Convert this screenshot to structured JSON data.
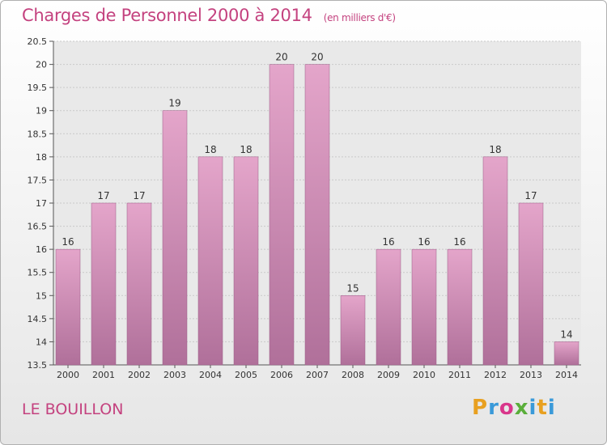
{
  "header": {
    "title": "Charges de Personnel 2000 à 2014",
    "unit": "(en milliers d'€)"
  },
  "footer": {
    "commune": "LE BOUILLON",
    "logo_letters": [
      "P",
      "r",
      "o",
      "x",
      "i",
      "t",
      "i"
    ],
    "logo_colors": [
      "#e8a020",
      "#3a9ad9",
      "#d9368b",
      "#5aae3a",
      "#3a9ad9",
      "#e8a020",
      "#3a9ad9"
    ]
  },
  "chart_data": {
    "type": "bar",
    "title": "Charges de Personnel 2000 à 2014",
    "categories": [
      "2000",
      "2001",
      "2002",
      "2003",
      "2004",
      "2005",
      "2006",
      "2007",
      "2008",
      "2009",
      "2010",
      "2011",
      "2012",
      "2013",
      "2014"
    ],
    "values": [
      16,
      17,
      17,
      19,
      18,
      18,
      20,
      20,
      15,
      16,
      16,
      16,
      18,
      17,
      14
    ],
    "data_labels": [
      "16",
      "17",
      "17",
      "19",
      "18",
      "18",
      "20",
      "20",
      "15",
      "16",
      "16",
      "16",
      "18",
      "17",
      "14"
    ],
    "y_ticks": [
      13.5,
      14,
      14.5,
      15,
      15.5,
      16,
      16.5,
      17,
      17.5,
      18,
      18.5,
      19,
      19.5,
      20,
      20.5
    ],
    "y_tick_labels": [
      "13.5",
      "14",
      "14.5",
      "15",
      "15.5",
      "16",
      "16.5",
      "17",
      "17.5",
      "18",
      "18.5",
      "19",
      "19.5",
      "20",
      "20.5"
    ],
    "ylim": [
      13.5,
      20.5
    ],
    "grid": true,
    "bar_color_top": "#e4a5ca",
    "bar_color_bottom": "#b0709a"
  }
}
